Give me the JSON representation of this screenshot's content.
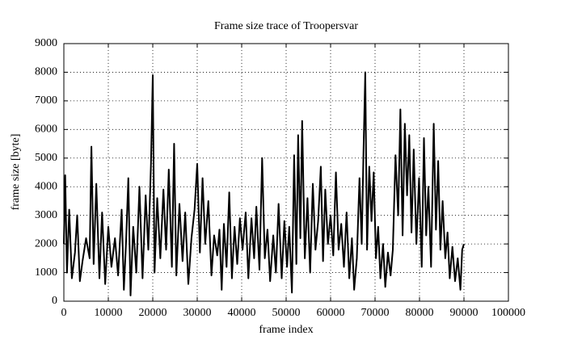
{
  "chart_data": {
    "type": "line",
    "title": "Frame size trace of Troopersvar",
    "xlabel": "frame index",
    "ylabel": "frame size [byte]",
    "xlim": [
      0,
      100000
    ],
    "ylim": [
      0,
      9000
    ],
    "xticks": [
      0,
      10000,
      20000,
      30000,
      40000,
      50000,
      60000,
      70000,
      80000,
      90000,
      100000
    ],
    "yticks": [
      0,
      1000,
      2000,
      3000,
      4000,
      5000,
      6000,
      7000,
      8000,
      9000
    ],
    "grid": true,
    "series": [
      {
        "color": "#000000",
        "x": [
          0,
          300,
          700,
          1200,
          1800,
          2500,
          3000,
          3600,
          4200,
          5000,
          5800,
          6200,
          6700,
          7300,
          8000,
          8600,
          9300,
          10000,
          10700,
          11500,
          12200,
          13000,
          13500,
          14000,
          14500,
          15000,
          15600,
          16300,
          17000,
          17700,
          18400,
          19000,
          19600,
          20000,
          20400,
          21000,
          21700,
          22400,
          23000,
          23600,
          24300,
          24800,
          25300,
          26000,
          26700,
          27300,
          28000,
          28700,
          29400,
          30000,
          30600,
          31200,
          31800,
          32500,
          33200,
          33800,
          34500,
          35000,
          35500,
          36000,
          36600,
          37200,
          37800,
          38400,
          39000,
          39600,
          40200,
          40900,
          41500,
          42200,
          42800,
          43300,
          44000,
          44600,
          45200,
          45800,
          46400,
          47100,
          47700,
          48300,
          49000,
          49600,
          50200,
          50700,
          51300,
          51800,
          52300,
          52700,
          53200,
          53600,
          54200,
          54800,
          55400,
          56000,
          56600,
          57200,
          57800,
          58300,
          58800,
          59400,
          60000,
          60600,
          61200,
          61800,
          62400,
          63000,
          63600,
          64200,
          64800,
          65300,
          65900,
          66500,
          67000,
          67400,
          67800,
          68200,
          68700,
          69200,
          69700,
          70200,
          70700,
          71200,
          71800,
          72300,
          72900,
          73500,
          74000,
          74600,
          75200,
          75700,
          76200,
          76700,
          77200,
          77700,
          78200,
          78700,
          79300,
          79900,
          80500,
          81000,
          81500,
          82000,
          82600,
          83200,
          83700,
          84200,
          84700,
          85200,
          85800,
          86300,
          86800,
          87400,
          88000,
          88600,
          89200,
          89600,
          90000
        ],
        "values": [
          2000,
          4400,
          1000,
          3200,
          800,
          1700,
          3000,
          700,
          1400,
          2200,
          1500,
          5400,
          1300,
          4100,
          800,
          3100,
          600,
          2600,
          1200,
          2200,
          900,
          3200,
          400,
          2100,
          4300,
          200,
          2600,
          1000,
          4000,
          800,
          3700,
          1800,
          4800,
          7900,
          1000,
          3600,
          1500,
          3900,
          1800,
          4600,
          1200,
          5500,
          900,
          3400,
          1400,
          3100,
          600,
          2200,
          3200,
          4800,
          1700,
          4300,
          2000,
          3500,
          900,
          2300,
          1600,
          2500,
          400,
          2700,
          1200,
          3800,
          800,
          2600,
          1300,
          2900,
          1800,
          3100,
          800,
          2900,
          1500,
          3300,
          1100,
          5000,
          1500,
          2500,
          700,
          2300,
          1000,
          3400,
          800,
          2800,
          1200,
          2600,
          300,
          5100,
          1300,
          5800,
          2200,
          6300,
          1500,
          3600,
          1000,
          4100,
          1800,
          2800,
          4700,
          1400,
          3900,
          2000,
          3000,
          1600,
          4500,
          1800,
          2700,
          1200,
          3100,
          800,
          2200,
          400,
          1500,
          4300,
          2000,
          5200,
          8000,
          1800,
          4700,
          2800,
          4500,
          1500,
          2600,
          800,
          2000,
          500,
          1700,
          900,
          1800,
          5100,
          3000,
          6700,
          2300,
          6200,
          3700,
          5800,
          2400,
          5300,
          2000,
          4300,
          1200,
          5700,
          2300,
          4000,
          1200,
          6200,
          2500,
          4900,
          1800,
          3500,
          1500,
          2400,
          800,
          1900,
          700,
          1500,
          400,
          1800,
          2000
        ]
      }
    ]
  }
}
